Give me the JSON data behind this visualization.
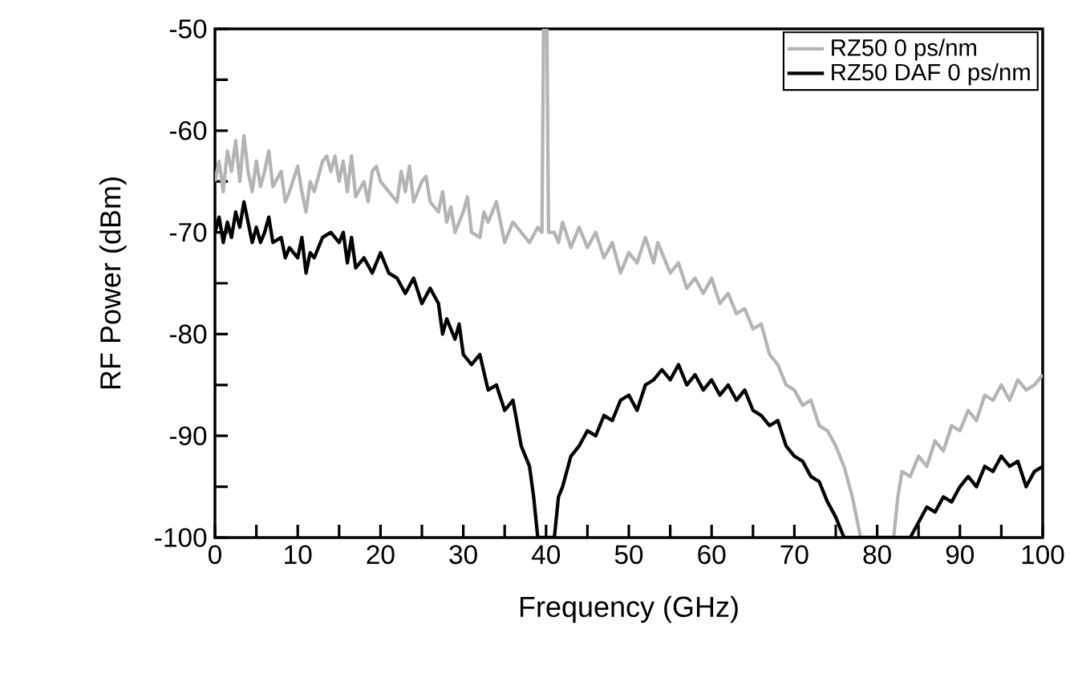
{
  "chart_data": {
    "type": "line",
    "xlabel": "Frequency (GHz)",
    "ylabel": "RF Power (dBm)",
    "xlim": [
      0,
      100
    ],
    "ylim": [
      -100,
      -50
    ],
    "xticks": [
      0,
      {
        "value": 5,
        "label": null
      },
      10,
      {
        "value": 15,
        "label": null
      },
      20,
      {
        "value": 25,
        "label": null
      },
      30,
      {
        "value": 35,
        "label": null
      },
      40,
      {
        "value": 45,
        "label": null
      },
      50,
      {
        "value": 55,
        "label": null
      },
      60,
      {
        "value": 65,
        "label": null
      },
      70,
      {
        "value": 75,
        "label": null
      },
      80,
      {
        "value": 85,
        "label": null
      },
      90,
      {
        "value": 95,
        "label": null
      },
      100
    ],
    "yticks": [
      -100,
      {
        "value": -95,
        "label": null
      },
      -90,
      {
        "value": -85,
        "label": null
      },
      -80,
      {
        "value": -75,
        "label": null
      },
      -70,
      {
        "value": -65,
        "label": null
      },
      -60,
      {
        "value": -55,
        "label": null
      },
      -50
    ],
    "grid": false,
    "legend": "top right",
    "marker": "none",
    "line_style": "solid",
    "series": [
      {
        "name": "RZ50 0 ps/nm",
        "color": "#b4b4b4",
        "x": [
          0,
          0.5,
          1,
          1.5,
          2,
          2.5,
          3,
          3.5,
          4,
          4.5,
          5,
          5.5,
          6,
          6.5,
          7,
          8,
          8.5,
          9,
          10,
          10.5,
          11,
          11.5,
          12,
          13,
          13.5,
          14,
          14.5,
          15,
          15.5,
          16,
          16.5,
          17,
          18,
          18.5,
          19,
          19.5,
          20,
          21,
          22,
          22.5,
          23,
          23.5,
          24,
          25,
          25.5,
          26,
          27,
          27.5,
          28,
          28.5,
          29,
          30,
          30.5,
          31,
          32,
          32.5,
          33,
          34,
          34.5,
          35,
          36,
          37,
          38,
          39,
          39.5,
          39.7,
          40.1,
          40.3,
          41,
          41.5,
          42,
          43,
          44,
          45,
          46,
          47,
          48,
          49,
          50,
          51,
          52,
          53,
          53.5,
          54,
          55,
          56,
          57,
          58,
          59,
          60,
          61,
          62,
          63,
          64,
          65,
          66,
          67,
          68,
          69,
          70,
          71,
          72,
          73,
          74,
          75,
          76,
          77,
          78,
          82,
          82.5,
          83,
          84,
          85,
          86,
          87,
          88,
          89,
          90,
          91,
          92,
          93,
          94,
          95,
          96,
          97,
          98,
          99,
          100
        ],
        "values": [
          -65,
          -63,
          -66,
          -62,
          -64,
          -61,
          -65,
          -60.5,
          -64,
          -66,
          -63,
          -65.5,
          -64,
          -62,
          -65.5,
          -64,
          -67,
          -66,
          -63.5,
          -66,
          -68,
          -65,
          -66,
          -63,
          -62.5,
          -64,
          -62.5,
          -65,
          -63,
          -66,
          -62.5,
          -66.5,
          -65,
          -67,
          -64,
          -63.5,
          -65,
          -66,
          -67,
          -64,
          -66,
          -63.5,
          -67,
          -65,
          -64.5,
          -67,
          -68,
          -66,
          -69,
          -67.5,
          -70,
          -68,
          -66.5,
          -70,
          -70.5,
          -68,
          -69,
          -67,
          -69,
          -71,
          -69,
          -70,
          -71,
          -69.5,
          -70,
          -50,
          -50,
          -70,
          -70,
          -71,
          -69,
          -71.5,
          -69.5,
          -71.5,
          -70,
          -72.5,
          -71,
          -74,
          -72,
          -73,
          -70.5,
          -73,
          -71,
          -72,
          -74,
          -73,
          -75.5,
          -74.5,
          -76,
          -74.5,
          -77,
          -76,
          -78,
          -77.5,
          -79.5,
          -79,
          -82,
          -83,
          -85,
          -85.5,
          -87,
          -86.5,
          -89,
          -89.5,
          -91,
          -93,
          -96,
          -100,
          -100,
          -96,
          -93.5,
          -94,
          -92,
          -93,
          -90.5,
          -91.5,
          -89,
          -89.5,
          -87.5,
          -88.5,
          -86,
          -86.5,
          -85,
          -86.5,
          -84.5,
          -85.5,
          -85,
          -84
        ]
      },
      {
        "name": "RZ50 DAF 0 ps/nm",
        "color": "#000000",
        "x": [
          0,
          0.5,
          1,
          1.5,
          2,
          2.5,
          3,
          3.5,
          4,
          4.5,
          5,
          5.5,
          6,
          6.5,
          7,
          8,
          8.5,
          9,
          10,
          10.5,
          11,
          11.5,
          12,
          13,
          14,
          15,
          15.5,
          16,
          16.5,
          17,
          18,
          19,
          20,
          21,
          22,
          23,
          24,
          25,
          26,
          27,
          27.5,
          28,
          29,
          29.5,
          30,
          31,
          32,
          33,
          34,
          35,
          36,
          37,
          38,
          38.5,
          39,
          41,
          41.5,
          42,
          43,
          44,
          45,
          46,
          47,
          48,
          49,
          50,
          51,
          52,
          53,
          54,
          55,
          56,
          57,
          58,
          59,
          60,
          61,
          62,
          63,
          64,
          65,
          66,
          67,
          68,
          69,
          70,
          71,
          72,
          73,
          74,
          75,
          76,
          84,
          85,
          86,
          87,
          88,
          89,
          90,
          91,
          92,
          93,
          94,
          95,
          96,
          97,
          98,
          99,
          100
        ],
        "values": [
          -70,
          -68.5,
          -71,
          -69,
          -70.5,
          -68,
          -69.5,
          -67,
          -69,
          -71,
          -69.5,
          -71,
          -70,
          -68.5,
          -71,
          -70.5,
          -72.5,
          -71.5,
          -72.5,
          -70.5,
          -74,
          -72,
          -72.5,
          -70.5,
          -70,
          -71,
          -70,
          -73,
          -70.5,
          -73.5,
          -72.5,
          -74,
          -72,
          -74,
          -74.5,
          -76,
          -74.5,
          -77,
          -75.5,
          -77,
          -80,
          -78.5,
          -80.5,
          -79,
          -82,
          -83,
          -82,
          -85.5,
          -85,
          -87.5,
          -86.5,
          -91,
          -93,
          -96,
          -100,
          -100,
          -96,
          -95,
          -92,
          -91,
          -89.5,
          -90,
          -88,
          -88.5,
          -86.5,
          -86,
          -87.5,
          -85,
          -84.5,
          -83.5,
          -84.5,
          -83,
          -85,
          -84,
          -85.5,
          -84.5,
          -86,
          -85,
          -86.5,
          -85.5,
          -87.5,
          -88,
          -89,
          -88.5,
          -91,
          -92,
          -92.5,
          -94,
          -94.5,
          -96.5,
          -98,
          -100,
          -100,
          -98.5,
          -97,
          -97.5,
          -96,
          -96.5,
          -95,
          -94,
          -95,
          -93,
          -93.5,
          -92,
          -93,
          -92.5,
          -95,
          -93.5,
          -93
        ]
      }
    ]
  }
}
